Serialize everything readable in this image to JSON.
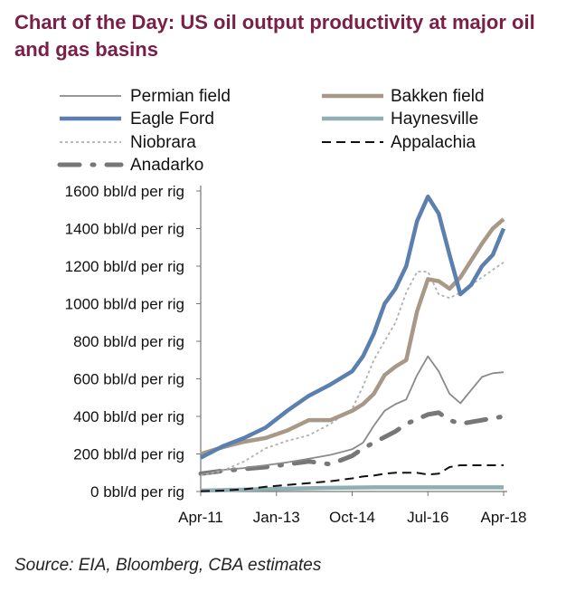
{
  "page": {
    "title": "Chart of the Day: US oil output productivity at major oil and gas basins",
    "source": "Source: EIA, Bloomberg, CBA estimates"
  },
  "chart_data": {
    "type": "line",
    "title": "Chart of the Day: US oil output productivity at major oil and gas basins",
    "xlabel": "",
    "ylabel": "",
    "x_range": [
      "2011-04",
      "2018-05"
    ],
    "ylim": [
      0,
      1600
    ],
    "y_ticks": [
      0,
      200,
      400,
      600,
      800,
      1000,
      1200,
      1400,
      1600
    ],
    "y_tick_labels": [
      "0 bbl/d per rig",
      "200 bbl/d per rig",
      "400 bbl/d per rig",
      "600 bbl/d per rig",
      "800 bbl/d per rig",
      "1000 bbl/d per rig",
      "1200 bbl/d per rig",
      "1400 bbl/d per rig",
      "1600 bbl/d per rig"
    ],
    "x_ticks": [
      "2011-04",
      "2013-01",
      "2014-10",
      "2016-07",
      "2018-04"
    ],
    "x_tick_labels": [
      "Apr-11",
      "Jan-13",
      "Oct-14",
      "Jul-16",
      "Apr-18"
    ],
    "grid": false,
    "legend_position": "top",
    "series": [
      {
        "name": "Permian field",
        "color": "#8a8a8a",
        "style": "thin-solid",
        "points": [
          [
            "2011-04",
            90
          ],
          [
            "2011-10",
            115
          ],
          [
            "2012-04",
            125
          ],
          [
            "2012-10",
            140
          ],
          [
            "2013-04",
            155
          ],
          [
            "2013-10",
            175
          ],
          [
            "2014-04",
            195
          ],
          [
            "2014-10",
            225
          ],
          [
            "2015-01",
            260
          ],
          [
            "2015-04",
            350
          ],
          [
            "2015-07",
            430
          ],
          [
            "2015-10",
            465
          ],
          [
            "2016-01",
            490
          ],
          [
            "2016-04",
            620
          ],
          [
            "2016-07",
            720
          ],
          [
            "2016-10",
            640
          ],
          [
            "2017-01",
            520
          ],
          [
            "2017-04",
            470
          ],
          [
            "2017-07",
            540
          ],
          [
            "2017-10",
            610
          ],
          [
            "2018-01",
            630
          ],
          [
            "2018-04",
            635
          ]
        ]
      },
      {
        "name": "Bakken field",
        "color": "#a89888",
        "style": "thick-solid",
        "points": [
          [
            "2011-04",
            200
          ],
          [
            "2011-10",
            235
          ],
          [
            "2012-04",
            265
          ],
          [
            "2012-10",
            285
          ],
          [
            "2013-04",
            325
          ],
          [
            "2013-10",
            380
          ],
          [
            "2014-04",
            380
          ],
          [
            "2014-10",
            430
          ],
          [
            "2015-01",
            465
          ],
          [
            "2015-04",
            520
          ],
          [
            "2015-07",
            620
          ],
          [
            "2015-10",
            665
          ],
          [
            "2016-01",
            700
          ],
          [
            "2016-04",
            960
          ],
          [
            "2016-07",
            1130
          ],
          [
            "2016-10",
            1120
          ],
          [
            "2017-01",
            1080
          ],
          [
            "2017-04",
            1140
          ],
          [
            "2017-07",
            1230
          ],
          [
            "2017-10",
            1320
          ],
          [
            "2018-01",
            1400
          ],
          [
            "2018-04",
            1450
          ]
        ]
      },
      {
        "name": "Eagle Ford",
        "color": "#5b7fae",
        "style": "thick-solid",
        "points": [
          [
            "2011-04",
            180
          ],
          [
            "2011-10",
            240
          ],
          [
            "2012-04",
            285
          ],
          [
            "2012-10",
            340
          ],
          [
            "2013-04",
            430
          ],
          [
            "2013-10",
            510
          ],
          [
            "2014-04",
            570
          ],
          [
            "2014-10",
            640
          ],
          [
            "2015-01",
            720
          ],
          [
            "2015-04",
            840
          ],
          [
            "2015-07",
            1000
          ],
          [
            "2015-10",
            1080
          ],
          [
            "2016-01",
            1200
          ],
          [
            "2016-04",
            1440
          ],
          [
            "2016-07",
            1570
          ],
          [
            "2016-10",
            1480
          ],
          [
            "2017-01",
            1260
          ],
          [
            "2017-04",
            1050
          ],
          [
            "2017-07",
            1100
          ],
          [
            "2017-10",
            1200
          ],
          [
            "2018-01",
            1260
          ],
          [
            "2018-04",
            1400
          ]
        ]
      },
      {
        "name": "Haynesville",
        "color": "#8fb0b2",
        "style": "thick-solid",
        "points": [
          [
            "2011-04",
            5
          ],
          [
            "2012-04",
            10
          ],
          [
            "2013-04",
            15
          ],
          [
            "2014-04",
            20
          ],
          [
            "2015-04",
            22
          ],
          [
            "2016-04",
            22
          ],
          [
            "2017-04",
            22
          ],
          [
            "2018-04",
            22
          ]
        ]
      },
      {
        "name": "Niobrara",
        "color": "#b0b0b0",
        "style": "dotted",
        "points": [
          [
            "2011-04",
            85
          ],
          [
            "2011-10",
            110
          ],
          [
            "2012-04",
            160
          ],
          [
            "2012-10",
            230
          ],
          [
            "2013-04",
            270
          ],
          [
            "2013-10",
            300
          ],
          [
            "2014-04",
            360
          ],
          [
            "2014-10",
            440
          ],
          [
            "2015-01",
            560
          ],
          [
            "2015-04",
            700
          ],
          [
            "2015-07",
            800
          ],
          [
            "2015-10",
            900
          ],
          [
            "2016-01",
            1060
          ],
          [
            "2016-04",
            1170
          ],
          [
            "2016-07",
            1170
          ],
          [
            "2016-10",
            1050
          ],
          [
            "2017-01",
            1030
          ],
          [
            "2017-04",
            1060
          ],
          [
            "2017-07",
            1100
          ],
          [
            "2017-10",
            1140
          ],
          [
            "2018-01",
            1180
          ],
          [
            "2018-04",
            1220
          ]
        ]
      },
      {
        "name": "Appalachia",
        "color": "#111111",
        "style": "dashed",
        "points": [
          [
            "2011-04",
            2
          ],
          [
            "2011-10",
            5
          ],
          [
            "2012-04",
            12
          ],
          [
            "2012-10",
            25
          ],
          [
            "2013-04",
            35
          ],
          [
            "2013-10",
            45
          ],
          [
            "2014-04",
            55
          ],
          [
            "2014-10",
            70
          ],
          [
            "2015-01",
            80
          ],
          [
            "2015-04",
            85
          ],
          [
            "2015-07",
            95
          ],
          [
            "2015-10",
            100
          ],
          [
            "2016-01",
            100
          ],
          [
            "2016-04",
            100
          ],
          [
            "2016-07",
            90
          ],
          [
            "2016-10",
            95
          ],
          [
            "2017-01",
            130
          ],
          [
            "2017-04",
            140
          ],
          [
            "2017-07",
            140
          ],
          [
            "2017-10",
            140
          ],
          [
            "2018-01",
            140
          ],
          [
            "2018-04",
            140
          ]
        ]
      },
      {
        "name": "Anadarko",
        "color": "#777777",
        "style": "dash-dot",
        "points": [
          [
            "2011-04",
            95
          ],
          [
            "2011-10",
            110
          ],
          [
            "2012-04",
            120
          ],
          [
            "2012-10",
            130
          ],
          [
            "2013-04",
            145
          ],
          [
            "2013-10",
            160
          ],
          [
            "2014-04",
            145
          ],
          [
            "2014-10",
            190
          ],
          [
            "2015-01",
            230
          ],
          [
            "2015-04",
            260
          ],
          [
            "2015-07",
            290
          ],
          [
            "2015-10",
            320
          ],
          [
            "2016-01",
            360
          ],
          [
            "2016-04",
            385
          ],
          [
            "2016-07",
            410
          ],
          [
            "2016-10",
            420
          ],
          [
            "2017-01",
            380
          ],
          [
            "2017-04",
            360
          ],
          [
            "2017-07",
            370
          ],
          [
            "2017-10",
            380
          ],
          [
            "2018-01",
            390
          ],
          [
            "2018-04",
            400
          ]
        ]
      }
    ]
  }
}
